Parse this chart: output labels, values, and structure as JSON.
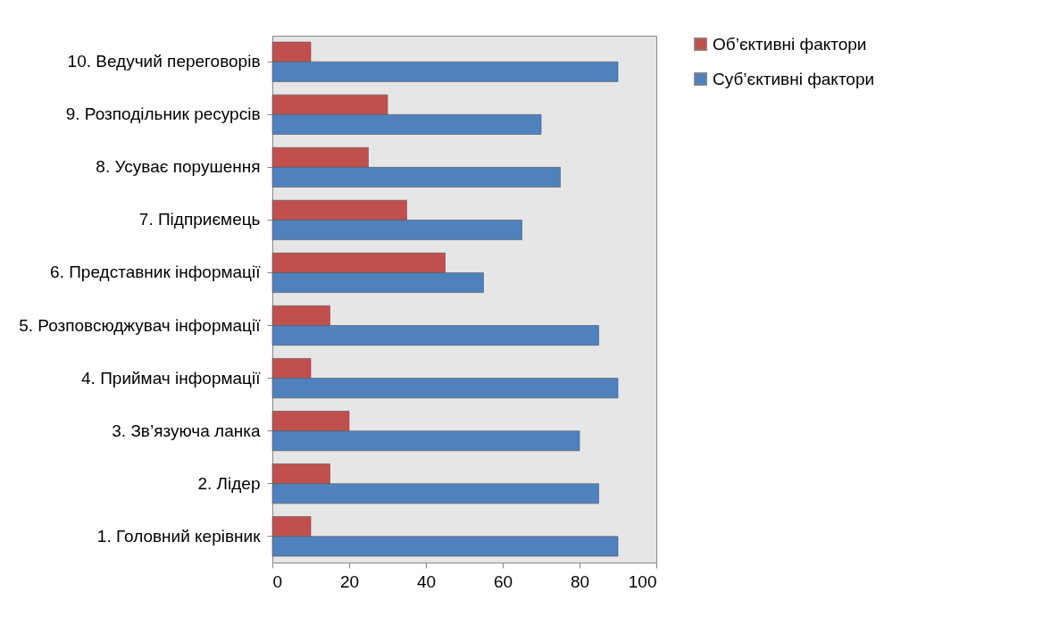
{
  "chart_data": {
    "type": "bar",
    "orientation": "horizontal",
    "categories": [
      "10.  Ведучий переговорів",
      "9. Розподільник ресурсів",
      "8. Усуває порушення",
      "7. Підприємець",
      "6. Представник інформації",
      "5. Розповсюджувач інформації",
      "4. Приймач інформації",
      "3. Зв’язуюча ланка",
      "2. Лідер",
      "1. Головний керівник"
    ],
    "series": [
      {
        "name": "Об’єктивні фактори",
        "color": "#c0504d",
        "values": [
          10,
          30,
          25,
          35,
          45,
          15,
          10,
          20,
          15,
          10
        ]
      },
      {
        "name": "Суб’єктивні фактори",
        "color": "#4f81bd",
        "values": [
          90,
          70,
          75,
          65,
          55,
          85,
          90,
          80,
          85,
          90
        ]
      }
    ],
    "xlim": [
      0,
      100
    ],
    "xticks": [
      0,
      20,
      40,
      60,
      80,
      100
    ],
    "grid": false,
    "legend": "right"
  }
}
